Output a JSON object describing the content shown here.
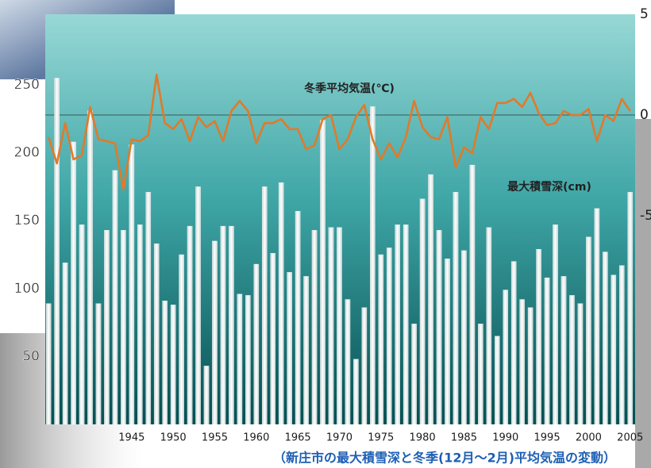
{
  "chart_data": {
    "type": "bar-line",
    "caption": "（新庄市の最大積雪深と冬季(12月～2月)平均気温の変動）",
    "line_label": "冬季平均気温(℃)",
    "bar_label": "最大積雪深(cm)",
    "x": [
      1935,
      1936,
      1937,
      1938,
      1939,
      1940,
      1941,
      1942,
      1943,
      1944,
      1945,
      1946,
      1947,
      1948,
      1949,
      1950,
      1951,
      1952,
      1953,
      1954,
      1955,
      1956,
      1957,
      1958,
      1959,
      1960,
      1961,
      1962,
      1963,
      1964,
      1965,
      1966,
      1967,
      1968,
      1969,
      1970,
      1971,
      1972,
      1973,
      1974,
      1975,
      1976,
      1977,
      1978,
      1979,
      1980,
      1981,
      1982,
      1983,
      1984,
      1985,
      1986,
      1987,
      1988,
      1989,
      1990,
      1991,
      1992,
      1993,
      1994,
      1995,
      1996,
      1997,
      1998,
      1999,
      2000,
      2001,
      2002,
      2003,
      2004,
      2005
    ],
    "xlim": [
      1934.6,
      2005.6
    ],
    "xticks": [
      1945,
      1950,
      1955,
      1960,
      1965,
      1970,
      1975,
      1980,
      1985,
      1990,
      1995,
      2000,
      2005
    ],
    "ylim": [
      0,
      302
    ],
    "yticks": [
      50,
      100,
      150,
      200,
      250
    ],
    "y2lim": [
      -15.35,
      5
    ],
    "y2ticks": [
      5,
      0,
      -5
    ],
    "y2_zero_line": true,
    "series": [
      {
        "name": "最大積雪深(cm)",
        "kind": "bar",
        "color": "#ffffff",
        "values": [
          89,
          255,
          119,
          208,
          147,
          231,
          89,
          143,
          187,
          143,
          206,
          147,
          171,
          133,
          91,
          88,
          125,
          146,
          175,
          43,
          135,
          146,
          146,
          96,
          95,
          118,
          175,
          126,
          178,
          112,
          157,
          109,
          143,
          224,
          145,
          145,
          92,
          48,
          86,
          234,
          125,
          130,
          147,
          147,
          74,
          166,
          184,
          143,
          122,
          171,
          128,
          191,
          74,
          145,
          65,
          99,
          120,
          92,
          86,
          129,
          108,
          147,
          109,
          95,
          89,
          138,
          159,
          127,
          110,
          117,
          171
        ]
      },
      {
        "name": "冬季平均気温(℃)",
        "kind": "line",
        "axis": "y2",
        "color": "#e07a2a",
        "values": [
          -1.1,
          -2.4,
          -0.4,
          -2.2,
          -2.0,
          0.4,
          -1.2,
          -1.3,
          -1.4,
          -3.7,
          -1.2,
          -1.3,
          -1.0,
          2.0,
          -0.4,
          -0.7,
          -0.2,
          -1.3,
          -0.1,
          -0.6,
          -0.3,
          -1.3,
          0.2,
          0.7,
          0.2,
          -1.4,
          -0.4,
          -0.4,
          -0.2,
          -0.7,
          -0.7,
          -1.7,
          -1.5,
          -0.2,
          0,
          -1.7,
          -1.2,
          -0.1,
          0.5,
          -1.2,
          -2.2,
          -1.4,
          -2.1,
          -1.1,
          0.7,
          -0.6,
          -1.1,
          -1.2,
          -0.1,
          -2.6,
          -1.6,
          -1.9,
          -0.1,
          -0.7,
          0.6,
          0.6,
          0.8,
          0.4,
          1.1,
          0.1,
          -0.5,
          -0.4,
          0.2,
          0,
          0,
          0.3,
          -1.3,
          0,
          -0.3,
          0.8,
          0.2
        ]
      }
    ]
  }
}
